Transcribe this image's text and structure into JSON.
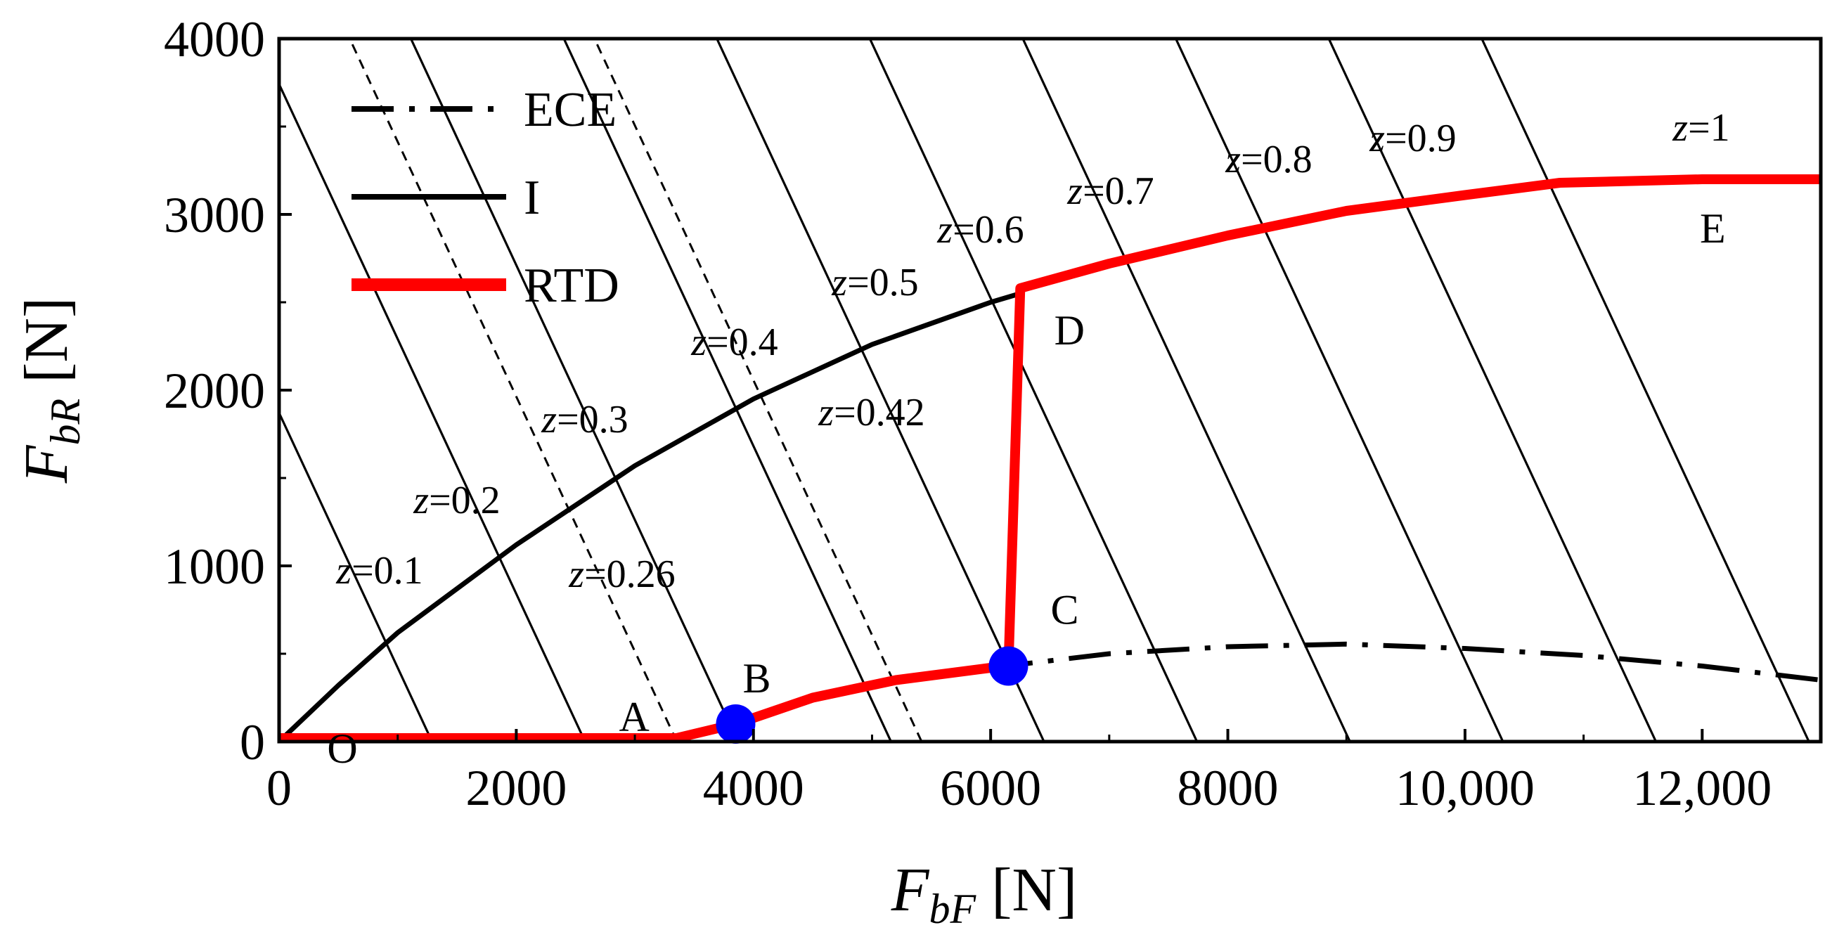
{
  "chart_data": {
    "type": "line",
    "xlabel": {
      "main": "F",
      "sub": "bF",
      "unit": " [N]"
    },
    "ylabel": {
      "main": "F",
      "sub": "bR",
      "unit": " [N]"
    },
    "xlim": [
      0,
      13000
    ],
    "ylim": [
      0,
      4000
    ],
    "xticks": [
      0,
      2000,
      4000,
      6000,
      8000,
      10000,
      12000
    ],
    "xtick_labels": [
      "0",
      "2000",
      "4000",
      "6000",
      "8000",
      "10,000",
      "12,000"
    ],
    "yticks": [
      0,
      1000,
      2000,
      3000,
      4000
    ],
    "ytick_labels": [
      "0",
      "1000",
      "2000",
      "3000",
      "4000"
    ],
    "grid": false,
    "legend_position": "top-left",
    "legend": [
      {
        "label": "ECE",
        "style": "dashdot",
        "color": "#000000"
      },
      {
        "label": "I",
        "style": "solid",
        "color": "#000000"
      },
      {
        "label": "RTD",
        "style": "thick",
        "color": "#ff0000"
      }
    ],
    "series": [
      {
        "name": "I",
        "color": "#000000",
        "style": "solid",
        "points": [
          [
            0,
            0
          ],
          [
            500,
            320
          ],
          [
            1000,
            620
          ],
          [
            2000,
            1120
          ],
          [
            3000,
            1570
          ],
          [
            4000,
            1950
          ],
          [
            5000,
            2260
          ],
          [
            6000,
            2500
          ],
          [
            6250,
            2550
          ]
        ]
      },
      {
        "name": "ECE",
        "color": "#000000",
        "style": "dashdot",
        "points": [
          [
            6000,
            420
          ],
          [
            7000,
            500
          ],
          [
            8000,
            540
          ],
          [
            9000,
            555
          ],
          [
            10000,
            530
          ],
          [
            11000,
            490
          ],
          [
            12000,
            430
          ],
          [
            13000,
            350
          ]
        ]
      },
      {
        "name": "RTD",
        "color": "#ff0000",
        "style": "thick",
        "points": [
          [
            0,
            20
          ],
          [
            3350,
            20
          ],
          [
            3850,
            100
          ],
          [
            4500,
            250
          ],
          [
            5200,
            350
          ],
          [
            6000,
            420
          ],
          [
            6150,
            430
          ],
          [
            6250,
            2580
          ],
          [
            7000,
            2720
          ],
          [
            8000,
            2880
          ],
          [
            9000,
            3020
          ],
          [
            10000,
            3110
          ],
          [
            10800,
            3180
          ],
          [
            12000,
            3200
          ],
          [
            13000,
            3200
          ]
        ]
      }
    ],
    "z_lines": [
      {
        "z": 0.1,
        "label": "z=0.1",
        "style": "solid"
      },
      {
        "z": 0.2,
        "label": "z=0.2",
        "style": "solid"
      },
      {
        "z": 0.26,
        "label": "z=0.26",
        "style": "dashed"
      },
      {
        "z": 0.3,
        "label": "z=0.3",
        "style": "solid"
      },
      {
        "z": 0.4,
        "label": "z=0.4",
        "style": "solid"
      },
      {
        "z": 0.42,
        "label": "z=0.42",
        "style": "dashed"
      },
      {
        "z": 0.5,
        "label": "z=0.5",
        "style": "solid"
      },
      {
        "z": 0.6,
        "label": "z=0.6",
        "style": "solid"
      },
      {
        "z": 0.7,
        "label": "z=0.7",
        "style": "solid"
      },
      {
        "z": 0.8,
        "label": "z=0.8",
        "style": "solid"
      },
      {
        "z": 0.9,
        "label": "z=0.9",
        "style": "solid"
      },
      {
        "z": 1,
        "label": "z=1",
        "style": "solid"
      }
    ],
    "points": [
      {
        "label": "O",
        "x": 0,
        "y": 0,
        "marker": false
      },
      {
        "label": "A",
        "x": 3350,
        "y": 20,
        "marker": false
      },
      {
        "label": "B",
        "x": 3850,
        "y": 100,
        "marker": true,
        "color": "#0000ff"
      },
      {
        "label": "C",
        "x": 6150,
        "y": 430,
        "marker": true,
        "color": "#0000ff"
      },
      {
        "label": "D",
        "x": 6250,
        "y": 2580,
        "marker": false
      },
      {
        "label": "E",
        "x": 12000,
        "y": 3200,
        "marker": false
      }
    ]
  }
}
